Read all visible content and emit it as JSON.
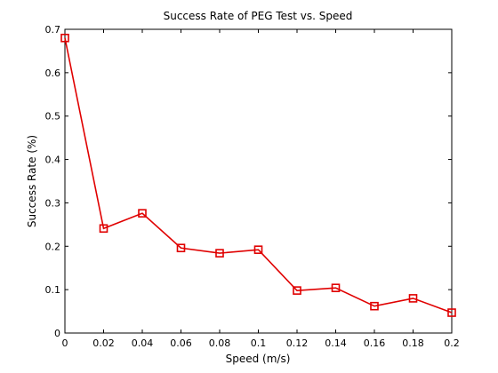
{
  "chart_data": {
    "type": "line",
    "title": "Success Rate of PEG Test vs. Speed",
    "xlabel": "Speed (m/s)",
    "ylabel": "Success Rate (%)",
    "xlim": [
      0,
      0.2
    ],
    "ylim": [
      0,
      0.7
    ],
    "x_ticks": [
      0,
      0.02,
      0.04,
      0.06,
      0.08,
      0.1,
      0.12,
      0.14,
      0.16,
      0.18,
      0.2
    ],
    "x_tick_labels": [
      "0",
      "0.02",
      "0.04",
      "0.06",
      "0.08",
      "0.1",
      "0.12",
      "0.14",
      "0.16",
      "0.18",
      "0.2"
    ],
    "y_ticks": [
      0,
      0.1,
      0.2,
      0.3,
      0.4,
      0.5,
      0.6,
      0.7
    ],
    "y_tick_labels": [
      "0",
      "0.1",
      "0.2",
      "0.3",
      "0.4",
      "0.5",
      "0.6",
      "0.7"
    ],
    "grid": false,
    "legend": "none",
    "series": [
      {
        "color": "#e00000",
        "marker": "square",
        "x": [
          0,
          0.02,
          0.04,
          0.06,
          0.08,
          0.1,
          0.12,
          0.14,
          0.16,
          0.18,
          0.2
        ],
        "y": [
          0.68,
          0.241,
          0.276,
          0.196,
          0.184,
          0.192,
          0.098,
          0.104,
          0.062,
          0.08,
          0.047
        ]
      }
    ]
  }
}
